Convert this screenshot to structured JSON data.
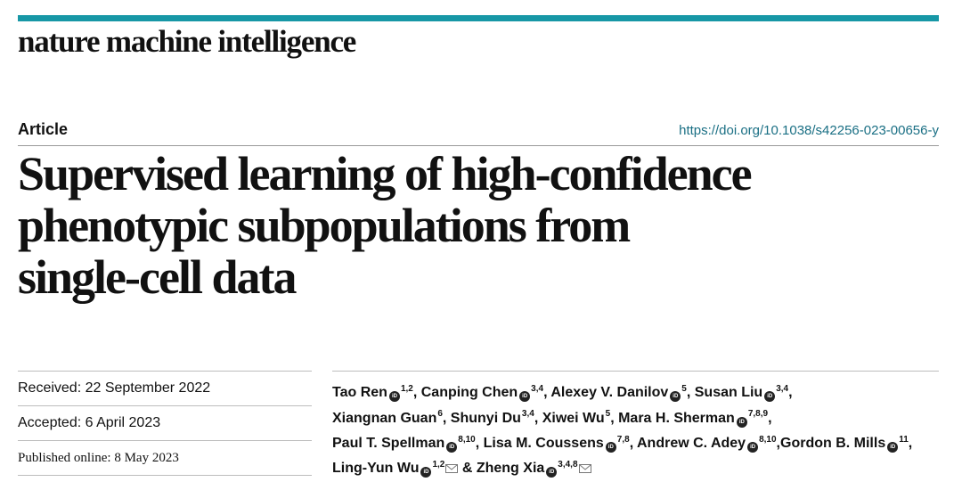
{
  "journal": "nature machine intelligence",
  "section_label": "Article",
  "doi": "https://doi.org/10.1038/s42256-023-00656-y",
  "title_lines": [
    "Supervised learning of high-confidence",
    "phenotypic subpopulations from",
    "single-cell data"
  ],
  "dates": {
    "received": "Received: 22 September 2022",
    "accepted": "Accepted: 6 April 2023",
    "published": "Published online: 8 May 2023"
  },
  "authors": [
    {
      "name": "Tao Ren",
      "aff": "1,2",
      "orcid": true,
      "sep": ", "
    },
    {
      "name": "Canping Chen",
      "aff": "3,4",
      "orcid": true,
      "sep": ", "
    },
    {
      "name": "Alexey V. Danilov",
      "aff": "5",
      "orcid": true,
      "sep": ", "
    },
    {
      "name": "Susan Liu",
      "aff": "3,4",
      "orcid": true,
      "sep": ","
    },
    {
      "name": "Xiangnan Guan",
      "aff": "6",
      "orcid": false,
      "sep": ", "
    },
    {
      "name": "Shunyi Du",
      "aff": "3,4",
      "orcid": false,
      "sep": ", "
    },
    {
      "name": "Xiwei Wu",
      "aff": "5",
      "orcid": false,
      "sep": ", "
    },
    {
      "name": "Mara H. Sherman",
      "aff": "7,8,9",
      "orcid": true,
      "sep": ","
    },
    {
      "name": "Paul T. Spellman",
      "aff": "8,10",
      "orcid": true,
      "sep": ", "
    },
    {
      "name": "Lisa M. Coussens",
      "aff": "7,8",
      "orcid": true,
      "sep": ", "
    },
    {
      "name": "Andrew C. Adey",
      "aff": "8,10",
      "orcid": true,
      "sep": ","
    },
    {
      "name": "Gordon B. Mills",
      "aff": "11",
      "orcid": true,
      "sep": ", "
    },
    {
      "name": "Ling-Yun Wu",
      "aff": "1,2",
      "orcid": true,
      "sep": " "
    },
    {
      "name": "& Zheng Xia",
      "aff": "3,4,8",
      "orcid": true,
      "sep": ""
    }
  ],
  "colors": {
    "accent": "#1797a6",
    "link": "#1a6f84"
  },
  "icons": [
    "orcid-icon",
    "envelope-icon"
  ]
}
